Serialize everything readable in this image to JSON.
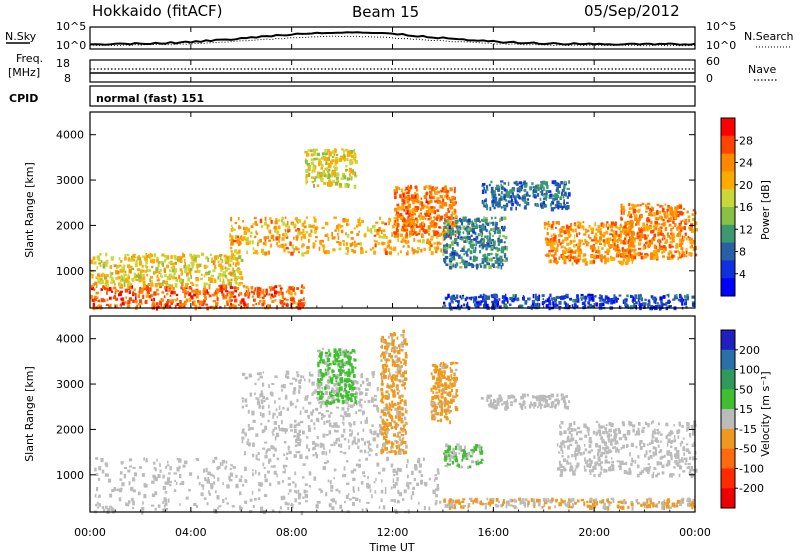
{
  "header": {
    "site": "Hokkaido (fitACF)",
    "beam": "Beam 15",
    "date": "05/Sep/2012"
  },
  "noise_panel": {
    "left_label": "N.Sky",
    "right_label": "N.Search",
    "left_ticks": [
      "10^5",
      "10^0"
    ],
    "right_ticks": [
      "10^5",
      "10^0"
    ]
  },
  "freq_panel": {
    "left_label_1": "Freq.",
    "left_label_2": "[MHz]",
    "right_label": "Nave",
    "left_ticks": [
      "18",
      "8"
    ],
    "right_ticks": [
      "60",
      "0"
    ]
  },
  "cpid_panel": {
    "label": "CPID",
    "text": "normal (fast) 151"
  },
  "power_panel": {
    "ylabel": "Slant Range [km]",
    "yticks": [
      "1000",
      "2000",
      "3000",
      "4000"
    ],
    "colorbar_label": "Power [dB]",
    "colorbar_ticks": [
      "28",
      "24",
      "20",
      "16",
      "12",
      "8",
      "4"
    ],
    "colorbar_colors": [
      "#ff0000",
      "#ff4400",
      "#ff8800",
      "#ffaa00",
      "#c8d838",
      "#88c048",
      "#3c9870",
      "#2860a8",
      "#1030e0",
      "#0000ff"
    ]
  },
  "velocity_panel": {
    "ylabel": "Slant Range [km]",
    "yticks": [
      "1000",
      "2000",
      "3000",
      "4000"
    ],
    "colorbar_label": "Velocity [m s⁻¹]",
    "colorbar_ticks": [
      "200",
      "100",
      "50",
      "15",
      "-15",
      "-50",
      "-100",
      "-200"
    ],
    "colorbar_colors": [
      "#2020c0",
      "#2a70a8",
      "#2e9a5a",
      "#40c030",
      "#bbbbbb",
      "#ee9a20",
      "#ff6a10",
      "#ff2a00",
      "#ee0000"
    ]
  },
  "xaxis": {
    "label": "Time UT",
    "ticks": [
      "00:00",
      "04:00",
      "08:00",
      "12:00",
      "16:00",
      "20:00",
      "00:00"
    ]
  },
  "chart_data": [
    {
      "type": "heatmap",
      "title": "Power",
      "xlabel": "Time UT",
      "ylabel": "Slant Range [km]",
      "xlim": [
        0,
        24
      ],
      "ylim": [
        180,
        4500
      ],
      "zlabel": "Power [dB]",
      "zlim": [
        0,
        32
      ],
      "regions": [
        {
          "t0": 0.0,
          "t1": 8.5,
          "r0": 200,
          "r1": 700,
          "z": 26
        },
        {
          "t0": 0.0,
          "t1": 6.0,
          "r0": 700,
          "r1": 1400,
          "z": 19
        },
        {
          "t0": 5.5,
          "t1": 14.0,
          "r0": 1400,
          "r1": 2200,
          "z": 22
        },
        {
          "t0": 12.0,
          "t1": 14.5,
          "r0": 1800,
          "r1": 2900,
          "z": 25
        },
        {
          "t0": 8.5,
          "t1": 10.5,
          "r0": 2900,
          "r1": 3700,
          "z": 18
        },
        {
          "t0": 14.0,
          "t1": 16.5,
          "r0": 1100,
          "r1": 2200,
          "z": 10
        },
        {
          "t0": 15.5,
          "t1": 19.0,
          "r0": 2400,
          "r1": 3000,
          "z": 9
        },
        {
          "t0": 18.0,
          "t1": 21.5,
          "r0": 1200,
          "r1": 2100,
          "z": 23
        },
        {
          "t0": 21.0,
          "t1": 24.0,
          "r0": 1300,
          "r1": 2500,
          "z": 24
        },
        {
          "t0": 14.0,
          "t1": 24.0,
          "r0": 200,
          "r1": 500,
          "z": 6
        }
      ]
    },
    {
      "type": "heatmap",
      "title": "Velocity",
      "xlabel": "Time UT",
      "ylabel": "Slant Range [km]",
      "xlim": [
        0,
        24
      ],
      "ylim": [
        180,
        4500
      ],
      "zlabel": "Velocity [m s⁻¹]",
      "zlim": [
        -250,
        250
      ],
      "regions": [
        {
          "t0": 0.0,
          "t1": 14.0,
          "r0": 200,
          "r1": 1400,
          "z": 0
        },
        {
          "t0": 6.0,
          "t1": 11.5,
          "r0": 1400,
          "r1": 3300,
          "z": 0
        },
        {
          "t0": 9.0,
          "t1": 10.5,
          "r0": 2600,
          "r1": 3800,
          "z": 40
        },
        {
          "t0": 11.5,
          "t1": 12.5,
          "r0": 1500,
          "r1": 4200,
          "z": -40
        },
        {
          "t0": 13.5,
          "t1": 14.5,
          "r0": 2200,
          "r1": 3500,
          "z": -45
        },
        {
          "t0": 14.0,
          "t1": 15.5,
          "r0": 1200,
          "r1": 1700,
          "z": 30
        },
        {
          "t0": 15.5,
          "t1": 19.0,
          "r0": 2500,
          "r1": 2800,
          "z": 0
        },
        {
          "t0": 18.5,
          "t1": 24.0,
          "r0": 1000,
          "r1": 2200,
          "z": 0
        },
        {
          "t0": 14.0,
          "t1": 24.0,
          "r0": 300,
          "r1": 500,
          "z": -30
        }
      ]
    }
  ]
}
